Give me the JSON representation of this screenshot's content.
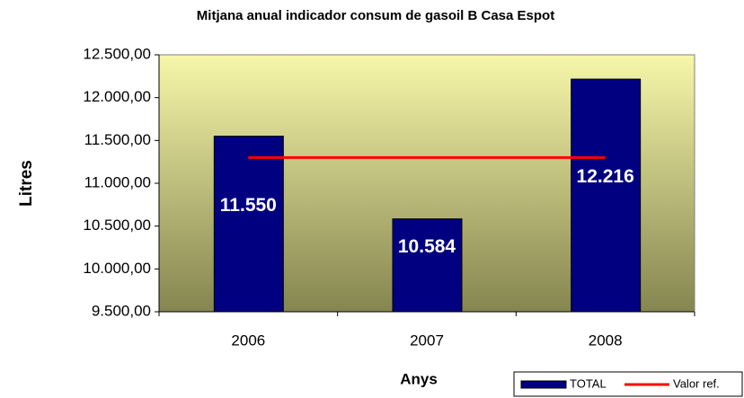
{
  "chart_data": {
    "type": "bar",
    "title": "Mitjana anual indicador consum de gasoil B Casa Espot",
    "x_label": "Anys",
    "y_label": "Litres",
    "categories": [
      "2006",
      "2007",
      "2008"
    ],
    "series": [
      {
        "name": "TOTAL",
        "color": "#000080",
        "values": [
          11550,
          10584,
          12216
        ],
        "value_labels": [
          "11.550",
          "10.584",
          "12.216"
        ]
      },
      {
        "name": "Valor ref.",
        "color": "#ff0000",
        "type": "line",
        "values": [
          11300,
          11300,
          11300
        ]
      }
    ],
    "ylim": [
      9500,
      12500
    ],
    "yticks": [
      {
        "value": 9500,
        "label": "9.500,00"
      },
      {
        "value": 10000,
        "label": "10.000,00"
      },
      {
        "value": 10500,
        "label": "10.500,00"
      },
      {
        "value": 11000,
        "label": "11.000,00"
      },
      {
        "value": 11500,
        "label": "11.500,00"
      },
      {
        "value": 12000,
        "label": "12.000,00"
      },
      {
        "value": 12500,
        "label": "12.500,00"
      }
    ],
    "grid": false,
    "legend": "bottom-right"
  }
}
